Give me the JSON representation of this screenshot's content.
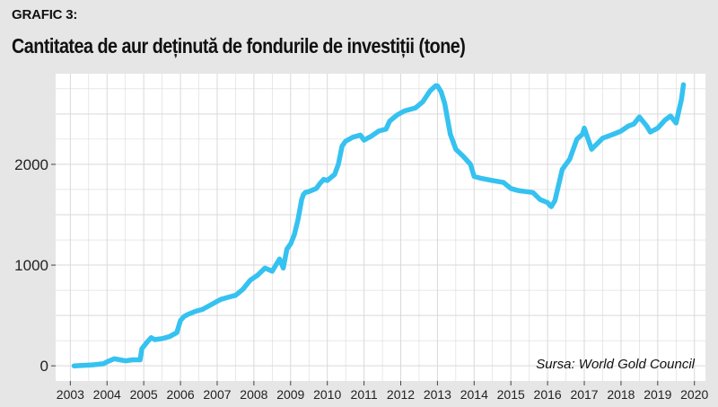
{
  "header": {
    "label": "GRAFIC 3:",
    "title": "Cantitatea de aur deținută de fondurile de investiții (tone)"
  },
  "source": "Sursa: World Gold Council",
  "colors": {
    "line": "#35c2f0",
    "background": "#e6e6e6",
    "plot_background": "#ffffff",
    "grid": "#d9d9d9"
  },
  "chart_data": {
    "type": "line",
    "title": "Cantitatea de aur deținută de fondurile de investiții (tone)",
    "xlabel": "",
    "ylabel": "",
    "xlim": [
      2002.6,
      2020.3
    ],
    "ylim": [
      -150,
      2900
    ],
    "x_ticks": [
      "2003",
      "2004",
      "2005",
      "2006",
      "2007",
      "2008",
      "2009",
      "2010",
      "2011",
      "2012",
      "2013",
      "2014",
      "2015",
      "2016",
      "2017",
      "2018",
      "2019",
      "2020"
    ],
    "y_ticks": [
      "0",
      "1000",
      "2000"
    ],
    "grid": true,
    "legend": "none",
    "series": [
      {
        "x": [
          2003.1,
          2003.6,
          2003.9,
          2004.0,
          2004.2,
          2004.35,
          2004.5,
          2004.7,
          2004.9,
          2004.95,
          2005.1,
          2005.2,
          2005.3,
          2005.5,
          2005.7,
          2005.9,
          2006.0,
          2006.1,
          2006.2,
          2006.4,
          2006.6,
          2006.8,
          2007.0,
          2007.1,
          2007.3,
          2007.5,
          2007.7,
          2007.9,
          2008.1,
          2008.3,
          2008.5,
          2008.6,
          2008.7,
          2008.8,
          2008.9,
          2009.0,
          2009.1,
          2009.2,
          2009.3,
          2009.35,
          2009.4,
          2009.5,
          2009.7,
          2009.8,
          2009.9,
          2010.0,
          2010.2,
          2010.3,
          2010.4,
          2010.5,
          2010.7,
          2010.9,
          2011.0,
          2011.2,
          2011.4,
          2011.6,
          2011.7,
          2011.9,
          2012.1,
          2012.4,
          2012.6,
          2012.8,
          2012.95,
          2013.0,
          2013.1,
          2013.2,
          2013.35,
          2013.5,
          2013.7,
          2013.9,
          2014.0,
          2014.2,
          2014.5,
          2014.8,
          2015.0,
          2015.2,
          2015.4,
          2015.6,
          2015.8,
          2016.0,
          2016.1,
          2016.2,
          2016.4,
          2016.6,
          2016.8,
          2016.95,
          2017.0,
          2017.2,
          2017.5,
          2017.8,
          2018.0,
          2018.2,
          2018.35,
          2018.5,
          2018.7,
          2018.8,
          2019.0,
          2019.2,
          2019.35,
          2019.5,
          2019.65,
          2019.7
        ],
        "y": [
          0,
          10,
          20,
          40,
          70,
          60,
          50,
          60,
          60,
          170,
          240,
          280,
          260,
          270,
          290,
          330,
          450,
          490,
          510,
          540,
          560,
          600,
          640,
          660,
          680,
          700,
          760,
          850,
          900,
          970,
          940,
          1000,
          1060,
          970,
          1160,
          1210,
          1300,
          1450,
          1650,
          1700,
          1720,
          1730,
          1760,
          1810,
          1850,
          1840,
          1900,
          2000,
          2180,
          2230,
          2270,
          2290,
          2240,
          2280,
          2330,
          2350,
          2430,
          2490,
          2530,
          2560,
          2620,
          2730,
          2780,
          2780,
          2720,
          2600,
          2300,
          2150,
          2080,
          2000,
          1880,
          1860,
          1840,
          1820,
          1760,
          1740,
          1730,
          1720,
          1650,
          1620,
          1580,
          1640,
          1950,
          2050,
          2250,
          2300,
          2360,
          2150,
          2260,
          2300,
          2330,
          2380,
          2400,
          2470,
          2380,
          2320,
          2360,
          2440,
          2480,
          2410,
          2650,
          2790
        ]
      }
    ]
  }
}
